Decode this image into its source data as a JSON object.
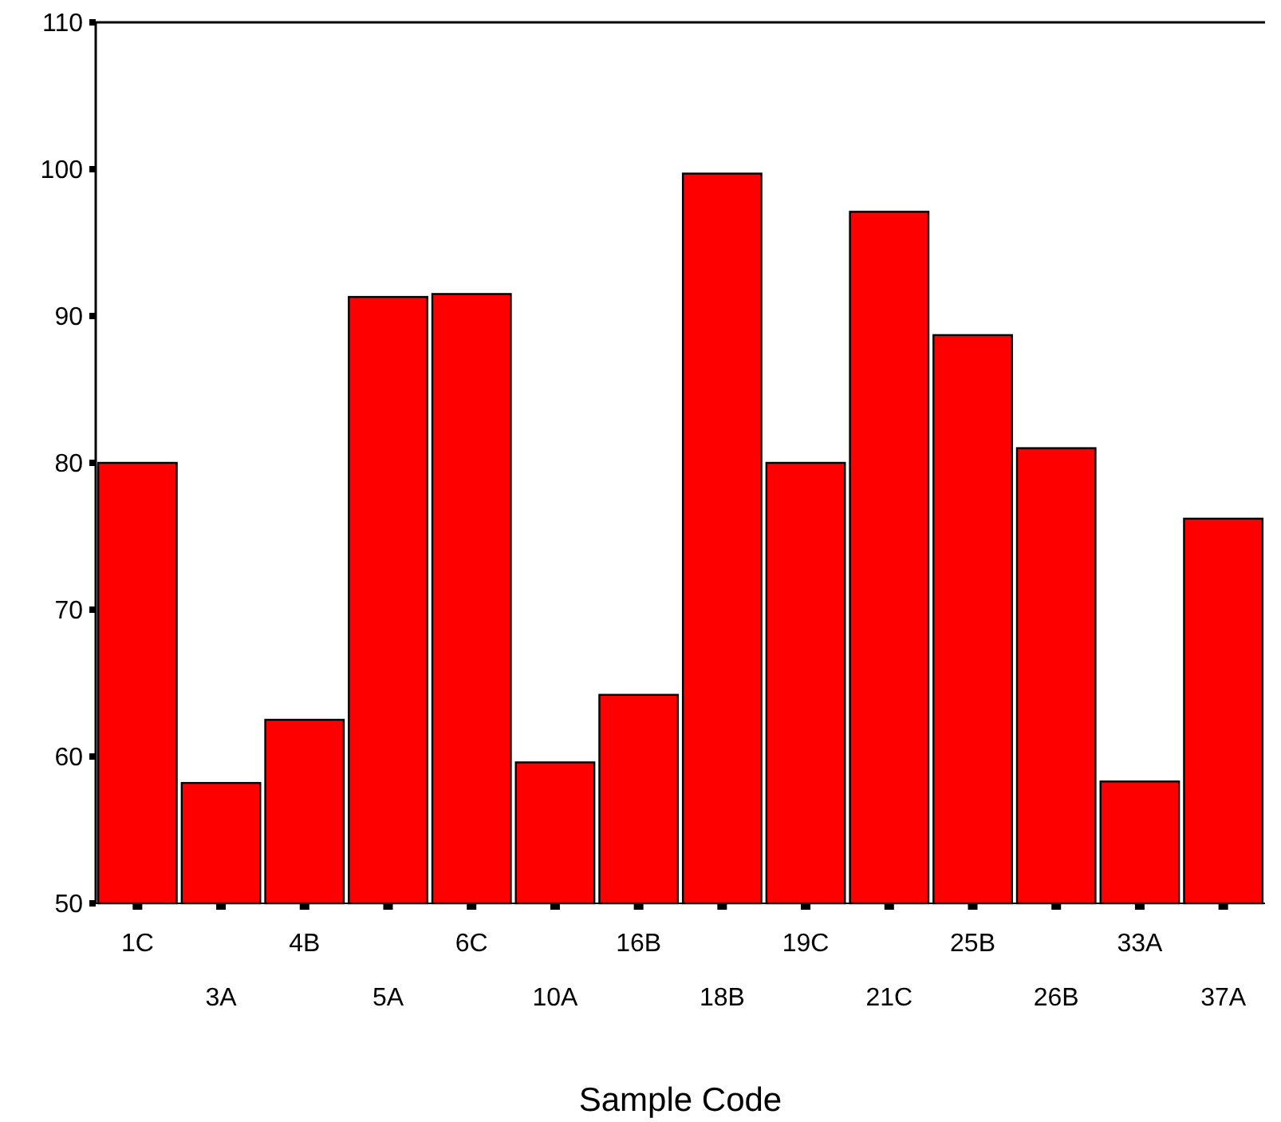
{
  "chart_data": {
    "type": "bar",
    "xlabel": "Sample Code",
    "categories": [
      "1C",
      "3A",
      "4B",
      "5A",
      "6C",
      "10A",
      "16B",
      "18B",
      "19C",
      "21C",
      "25B",
      "26B",
      "33A",
      "37A"
    ],
    "values": [
      80,
      58.2,
      62.5,
      91.3,
      91.5,
      59.6,
      64.2,
      99.7,
      80,
      97.1,
      88.7,
      81,
      58.3,
      76.2
    ],
    "color": "#ff0000",
    "ylim": [
      50,
      110
    ],
    "yticks": [
      50,
      60,
      70,
      80,
      90,
      100,
      110
    ],
    "grid": false
  }
}
